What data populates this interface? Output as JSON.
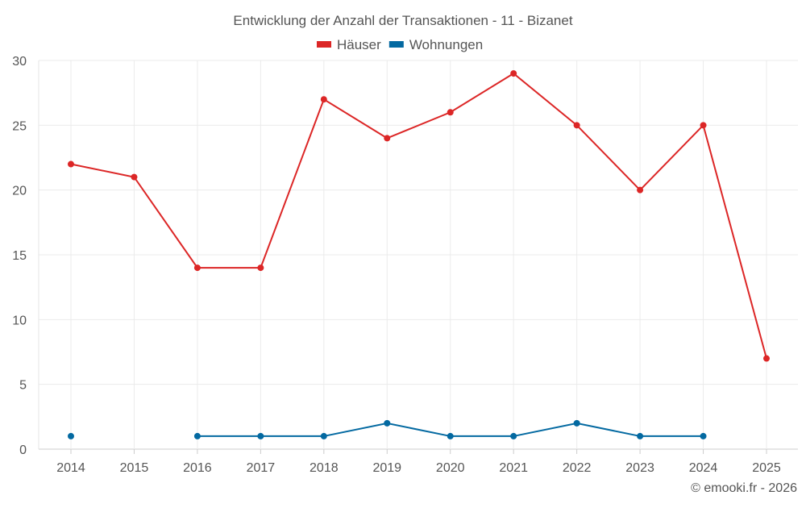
{
  "chart_data": {
    "type": "line",
    "title": "Entwicklung der Anzahl der Transaktionen - 11 - Bizanet",
    "categories": [
      "2014",
      "2015",
      "2016",
      "2017",
      "2018",
      "2019",
      "2020",
      "2021",
      "2022",
      "2023",
      "2024",
      "2025"
    ],
    "series": [
      {
        "name": "Häuser",
        "color": "#dc2626",
        "values": [
          22,
          21,
          14,
          14,
          27,
          24,
          26,
          29,
          25,
          20,
          25,
          7
        ]
      },
      {
        "name": "Wohnungen",
        "color": "#0369a1",
        "values": [
          1,
          null,
          1,
          1,
          1,
          2,
          1,
          1,
          2,
          1,
          1,
          null
        ]
      }
    ],
    "ylim": [
      0,
      30
    ],
    "yticks": [
      0,
      5,
      10,
      15,
      20,
      25,
      30
    ],
    "xlabel": "",
    "ylabel": "",
    "grid": true,
    "legend_position": "top-center"
  },
  "credit": "© emooki.fr - 2026"
}
